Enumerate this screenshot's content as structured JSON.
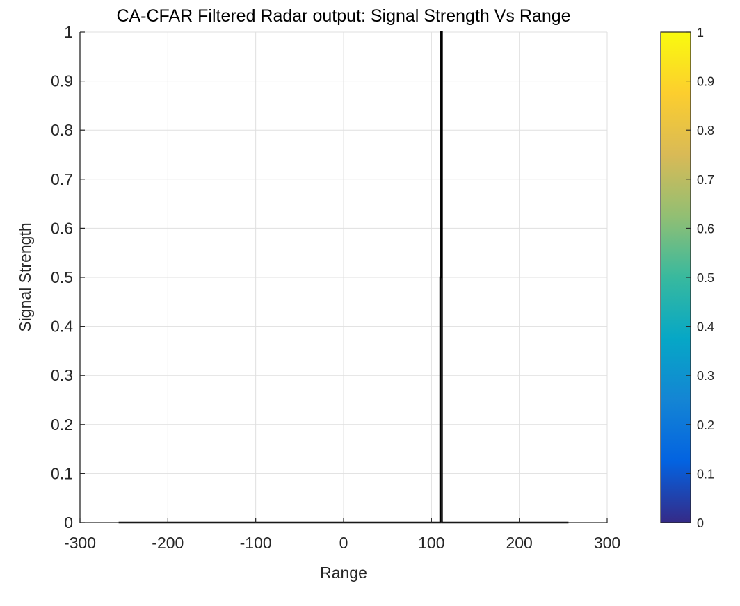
{
  "chart_data": {
    "type": "line",
    "title": "CA-CFAR Filtered Radar output: Signal Strength Vs Range",
    "xlabel": "Range",
    "ylabel": "Signal Strength",
    "xlim": [
      -300,
      300
    ],
    "ylim": [
      0,
      1
    ],
    "xticks": [
      -300,
      -200,
      -100,
      0,
      100,
      200,
      300
    ],
    "xtick_labels": [
      "-300",
      "-200",
      "-100",
      "0",
      "100",
      "200",
      "300"
    ],
    "yticks": [
      0,
      0.1,
      0.2,
      0.3,
      0.4,
      0.5,
      0.6,
      0.7,
      0.8,
      0.9,
      1
    ],
    "ytick_labels": [
      "0",
      "0.1",
      "0.2",
      "0.3",
      "0.4",
      "0.5",
      "0.6",
      "0.7",
      "0.8",
      "0.9",
      "1"
    ],
    "grid": true,
    "series": [
      {
        "color": "#000000",
        "x": [
          -256,
          109,
          110,
          110,
          111,
          111,
          112,
          112,
          113,
          113,
          256
        ],
        "y": [
          0,
          0,
          0,
          0.5,
          0.5,
          1,
          1,
          0,
          0,
          0,
          0
        ]
      }
    ],
    "colorbar": {
      "colormap": "parula",
      "range": [
        0,
        1
      ],
      "ticks": [
        0,
        0.1,
        0.2,
        0.3,
        0.4,
        0.5,
        0.6,
        0.7,
        0.8,
        0.9,
        1
      ],
      "tick_labels": [
        "0",
        "0.1",
        "0.2",
        "0.3",
        "0.4",
        "0.5",
        "0.6",
        "0.7",
        "0.8",
        "0.9",
        "1"
      ],
      "colors": [
        "#352a87",
        "#0363e1",
        "#1485d4",
        "#06a7c6",
        "#38b99e",
        "#92bf73",
        "#d9ba56",
        "#fcce2e",
        "#f9fb0e"
      ]
    }
  }
}
